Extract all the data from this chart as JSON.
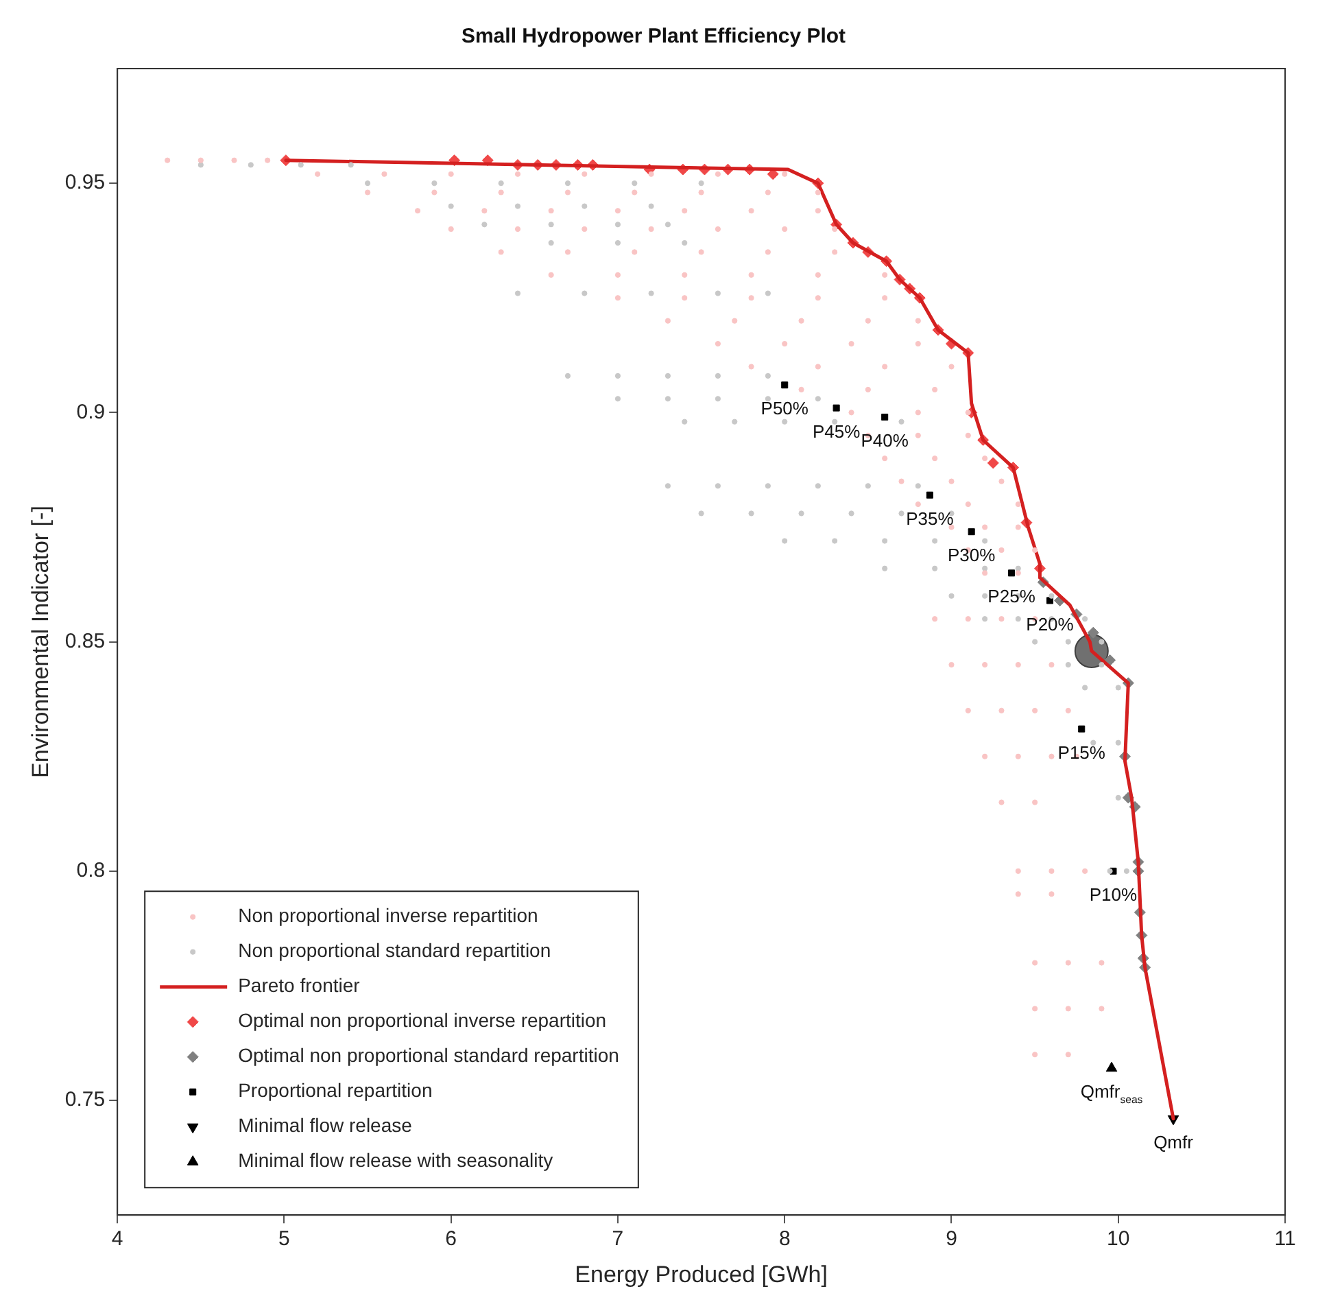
{
  "chart_data": {
    "type": "scatter",
    "title": "Small Hydropower Plant Efficiency Plot",
    "xlabel": "Energy Produced [GWh]",
    "ylabel": "Environmental Indicator [-]",
    "xlim": [
      4,
      11
    ],
    "xticks": [
      4,
      5,
      6,
      7,
      8,
      9,
      10,
      11
    ],
    "ylim": [
      0.725,
      0.975
    ],
    "yticks": [
      0.75,
      0.8,
      0.85,
      0.9,
      0.95
    ],
    "grid": false,
    "legend": "bottom left",
    "series": [
      {
        "name": "Non proportional inverse repartition",
        "color": "#f9c4c4",
        "marker": "circle",
        "x": [
          4.3,
          4.5,
          4.7,
          4.9,
          5.2,
          5.6,
          6.0,
          6.4,
          6.8,
          7.2,
          7.6,
          8.0,
          5.5,
          5.9,
          6.3,
          6.7,
          7.1,
          7.5,
          7.9,
          8.2,
          5.8,
          6.2,
          6.6,
          7.0,
          7.4,
          7.8,
          8.2,
          6.0,
          6.4,
          6.8,
          7.2,
          7.6,
          8.0,
          8.3,
          6.3,
          6.7,
          7.1,
          7.5,
          7.9,
          8.3,
          6.6,
          7.0,
          7.4,
          7.8,
          8.2,
          8.6,
          7.0,
          7.4,
          7.8,
          8.2,
          8.6,
          7.3,
          7.7,
          8.1,
          8.5,
          8.8,
          7.6,
          8.0,
          8.4,
          8.8,
          7.8,
          8.2,
          8.6,
          9.0,
          8.1,
          8.5,
          8.9,
          8.4,
          8.8,
          9.1,
          8.5,
          8.8,
          9.1,
          8.6,
          8.9,
          9.2,
          8.7,
          9.0,
          9.3,
          8.8,
          9.1,
          9.4,
          9.0,
          9.2,
          9.4,
          9.1,
          9.3,
          9.5,
          9.2,
          9.4,
          8.9,
          9.1,
          9.3,
          9.5,
          9.0,
          9.2,
          9.4,
          9.6,
          9.1,
          9.3,
          9.5,
          9.7,
          9.2,
          9.4,
          9.6,
          9.75,
          9.3,
          9.5,
          9.4,
          9.6,
          9.8,
          9.4,
          9.6,
          9.5,
          9.7,
          9.9,
          9.5,
          9.7,
          9.9,
          9.5,
          9.7
        ],
        "values": [
          0.955,
          0.955,
          0.955,
          0.955,
          0.952,
          0.952,
          0.952,
          0.952,
          0.952,
          0.952,
          0.952,
          0.952,
          0.948,
          0.948,
          0.948,
          0.948,
          0.948,
          0.948,
          0.948,
          0.948,
          0.944,
          0.944,
          0.944,
          0.944,
          0.944,
          0.944,
          0.944,
          0.94,
          0.94,
          0.94,
          0.94,
          0.94,
          0.94,
          0.94,
          0.935,
          0.935,
          0.935,
          0.935,
          0.935,
          0.935,
          0.93,
          0.93,
          0.93,
          0.93,
          0.93,
          0.93,
          0.925,
          0.925,
          0.925,
          0.925,
          0.925,
          0.92,
          0.92,
          0.92,
          0.92,
          0.92,
          0.915,
          0.915,
          0.915,
          0.915,
          0.91,
          0.91,
          0.91,
          0.91,
          0.905,
          0.905,
          0.905,
          0.9,
          0.9,
          0.9,
          0.895,
          0.895,
          0.895,
          0.89,
          0.89,
          0.89,
          0.885,
          0.885,
          0.885,
          0.88,
          0.88,
          0.88,
          0.875,
          0.875,
          0.875,
          0.87,
          0.87,
          0.87,
          0.865,
          0.865,
          0.855,
          0.855,
          0.855,
          0.855,
          0.845,
          0.845,
          0.845,
          0.845,
          0.835,
          0.835,
          0.835,
          0.835,
          0.825,
          0.825,
          0.825,
          0.825,
          0.815,
          0.815,
          0.8,
          0.8,
          0.8,
          0.795,
          0.795,
          0.78,
          0.78,
          0.78,
          0.77,
          0.77,
          0.77,
          0.76,
          0.76
        ]
      },
      {
        "name": "Non proportional standard repartition",
        "color": "#c8c8c8",
        "marker": "circle",
        "x": [
          4.5,
          4.8,
          5.1,
          5.4,
          5.5,
          5.9,
          6.3,
          6.7,
          7.1,
          7.5,
          6.0,
          6.4,
          6.8,
          7.2,
          6.2,
          6.6,
          7.0,
          7.3,
          6.6,
          7.0,
          7.4,
          6.4,
          6.8,
          7.2,
          7.6,
          7.9,
          6.7,
          7.0,
          7.3,
          7.6,
          7.9,
          7.0,
          7.3,
          7.6,
          7.9,
          8.2,
          7.4,
          7.7,
          8.0,
          8.3,
          8.7,
          7.3,
          7.6,
          7.9,
          8.2,
          8.5,
          8.8,
          7.5,
          7.8,
          8.1,
          8.4,
          8.7,
          9.0,
          8.0,
          8.3,
          8.6,
          8.9,
          9.2,
          8.6,
          8.9,
          9.2,
          9.4,
          9.0,
          9.2,
          9.4,
          9.6,
          9.2,
          9.4,
          9.6,
          9.8,
          9.5,
          9.7,
          9.9,
          9.7,
          9.9,
          9.8,
          10.0,
          9.85,
          10.0,
          10.0,
          9.95,
          10.05
        ],
        "values": [
          0.954,
          0.954,
          0.954,
          0.954,
          0.95,
          0.95,
          0.95,
          0.95,
          0.95,
          0.95,
          0.945,
          0.945,
          0.945,
          0.945,
          0.941,
          0.941,
          0.941,
          0.941,
          0.937,
          0.937,
          0.937,
          0.926,
          0.926,
          0.926,
          0.926,
          0.926,
          0.908,
          0.908,
          0.908,
          0.908,
          0.908,
          0.903,
          0.903,
          0.903,
          0.903,
          0.903,
          0.898,
          0.898,
          0.898,
          0.898,
          0.898,
          0.884,
          0.884,
          0.884,
          0.884,
          0.884,
          0.884,
          0.878,
          0.878,
          0.878,
          0.878,
          0.878,
          0.878,
          0.872,
          0.872,
          0.872,
          0.872,
          0.872,
          0.866,
          0.866,
          0.866,
          0.866,
          0.86,
          0.86,
          0.86,
          0.86,
          0.855,
          0.855,
          0.855,
          0.855,
          0.85,
          0.85,
          0.85,
          0.845,
          0.845,
          0.84,
          0.84,
          0.828,
          0.828,
          0.816,
          0.8,
          0.8
        ]
      },
      {
        "name": "Pareto frontier",
        "type": "line",
        "color": "#d42020",
        "marker": "none",
        "line_style": "solid",
        "x": [
          5.01,
          8.02,
          8.2,
          8.31,
          8.41,
          8.61,
          8.69,
          8.81,
          8.92,
          9.1,
          9.12,
          9.19,
          9.37,
          9.46,
          9.53,
          9.53,
          9.71,
          9.83,
          9.84,
          10.06,
          10.04,
          10.08,
          10.12,
          10.14,
          10.16,
          10.33
        ],
        "values": [
          0.955,
          0.953,
          0.95,
          0.941,
          0.937,
          0.933,
          0.929,
          0.925,
          0.918,
          0.913,
          0.902,
          0.894,
          0.888,
          0.875,
          0.867,
          0.864,
          0.858,
          0.85,
          0.848,
          0.841,
          0.824,
          0.816,
          0.802,
          0.786,
          0.779,
          0.746
        ]
      },
      {
        "name": "Optimal non proportional inverse repartition",
        "color": "#f04848",
        "marker": "diamond",
        "x": [
          5.01,
          6.02,
          6.22,
          6.4,
          6.52,
          6.63,
          6.76,
          6.85,
          7.19,
          7.39,
          7.52,
          7.66,
          7.79,
          7.93,
          8.2,
          8.31,
          8.41,
          8.5,
          8.61,
          8.69,
          8.75,
          8.81,
          8.92,
          9.0,
          9.1,
          9.12,
          9.19,
          9.25,
          9.37,
          9.45,
          9.53
        ],
        "values": [
          0.955,
          0.955,
          0.955,
          0.954,
          0.954,
          0.954,
          0.954,
          0.954,
          0.953,
          0.953,
          0.953,
          0.953,
          0.953,
          0.952,
          0.95,
          0.941,
          0.937,
          0.935,
          0.933,
          0.929,
          0.927,
          0.925,
          0.918,
          0.915,
          0.913,
          0.9,
          0.894,
          0.889,
          0.888,
          0.876,
          0.866
        ]
      },
      {
        "name": "Optimal non proportional standard repartition",
        "color": "#808080",
        "marker": "diamond",
        "x": [
          9.55,
          9.65,
          9.75,
          9.85,
          9.95,
          10.06,
          10.04,
          10.06,
          10.1,
          10.12,
          10.12,
          10.13,
          10.14,
          10.15,
          10.16
        ],
        "values": [
          0.863,
          0.859,
          0.856,
          0.852,
          0.846,
          0.841,
          0.825,
          0.816,
          0.814,
          0.802,
          0.8,
          0.791,
          0.786,
          0.781,
          0.779
        ]
      },
      {
        "type": "bubble",
        "color": "#707070",
        "x": [
          9.84
        ],
        "values": [
          0.848
        ],
        "sizes": [
          1
        ]
      },
      {
        "name": "Proportional repartition",
        "color": "#000000",
        "marker": "square",
        "x": [
          8.0,
          8.31,
          8.6,
          8.87,
          9.12,
          9.36,
          9.59,
          9.78,
          9.97
        ],
        "values": [
          0.906,
          0.901,
          0.899,
          0.882,
          0.874,
          0.865,
          0.859,
          0.831,
          0.8
        ],
        "value_labels": [
          "P50%",
          "P45%",
          "P40%",
          "P35%",
          "P30%",
          "P25%",
          "P20%",
          "P15%",
          "P10%"
        ]
      },
      {
        "name": "Minimal flow release",
        "color": "#000000",
        "marker": "triangle-down",
        "x": [
          10.33
        ],
        "values": [
          0.746
        ],
        "value_labels": [
          "Qmfr"
        ]
      },
      {
        "name": "Minimal flow release with seasonality",
        "color": "#000000",
        "marker": "triangle",
        "x": [
          9.96
        ],
        "values": [
          0.757
        ],
        "value_labels": [
          "Qmfr$_{seas}$"
        ]
      }
    ]
  }
}
